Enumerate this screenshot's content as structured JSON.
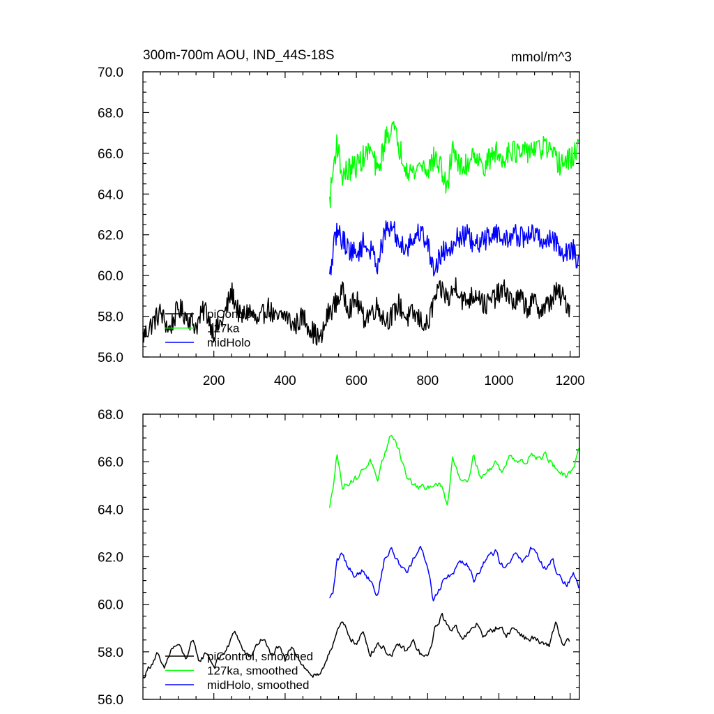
{
  "chart_data": [
    {
      "type": "line",
      "title": "300m-700m AOU, IND_44S-18S",
      "unit_label": "mmol/m^3",
      "xlabel": "",
      "ylabel": "",
      "xlim": [
        1,
        1226
      ],
      "ylim": [
        56.0,
        70.0
      ],
      "x_ticks": [
        200,
        400,
        600,
        800,
        1000,
        1200
      ],
      "x_tick_labels": [
        "200",
        "400",
        "600",
        "800",
        "1000",
        "1200"
      ],
      "y_ticks": [
        56.0,
        58.0,
        60.0,
        62.0,
        64.0,
        66.0,
        68.0,
        70.0
      ],
      "y_tick_labels": [
        "56.0",
        "58.0",
        "60.0",
        "62.0",
        "64.0",
        "66.0",
        "68.0",
        "70.0"
      ],
      "grid": false,
      "legend_position": "lower-left",
      "series": [
        {
          "name": "piControl",
          "color": "#000000",
          "x": [
            1,
            25,
            50,
            75,
            100,
            125,
            150,
            175,
            200,
            225,
            250,
            275,
            300,
            325,
            350,
            375,
            400,
            425,
            450,
            475,
            500,
            520,
            540,
            560,
            580,
            600,
            620,
            640,
            660,
            680,
            700,
            720,
            740,
            760,
            780,
            800,
            820,
            840,
            860,
            880,
            900,
            920,
            940,
            960,
            980,
            1000,
            1020,
            1040,
            1060,
            1080,
            1100,
            1120,
            1140,
            1160,
            1180,
            1200
          ],
          "values": [
            57.0,
            57.6,
            58.2,
            57.3,
            58.4,
            58.0,
            57.5,
            58.4,
            57.2,
            57.8,
            59.2,
            57.9,
            58.3,
            57.6,
            58.5,
            57.8,
            58.1,
            57.5,
            58.0,
            57.3,
            56.8,
            58.1,
            58.6,
            59.2,
            58.4,
            58.8,
            57.9,
            58.2,
            58.5,
            57.8,
            58.0,
            58.6,
            57.9,
            58.1,
            57.8,
            57.5,
            58.9,
            59.3,
            58.8,
            59.6,
            58.7,
            58.9,
            59.2,
            58.5,
            58.8,
            59.1,
            59.3,
            58.6,
            58.9,
            58.4,
            58.7,
            58.3,
            58.6,
            59.2,
            58.9,
            58.4
          ],
          "noise": 0.55
        },
        {
          "name": "127ka",
          "color": "#00ff00",
          "x": [
            525,
            535,
            545,
            560,
            580,
            600,
            620,
            640,
            660,
            680,
            700,
            720,
            740,
            760,
            780,
            800,
            820,
            840,
            855,
            870,
            890,
            910,
            930,
            950,
            970,
            990,
            1010,
            1030,
            1050,
            1070,
            1090,
            1110,
            1130,
            1150,
            1170,
            1190,
            1210,
            1226
          ],
          "values": [
            63.6,
            65.2,
            66.6,
            64.9,
            65.2,
            65.4,
            65.8,
            66.2,
            65.0,
            66.6,
            67.4,
            66.3,
            65.4,
            65.0,
            65.5,
            65.2,
            65.8,
            65.2,
            64.1,
            66.5,
            65.2,
            65.4,
            66.2,
            65.3,
            65.6,
            66.1,
            65.6,
            66.3,
            66.0,
            65.9,
            66.3,
            66.1,
            66.4,
            65.8,
            65.5,
            65.6,
            65.8,
            66.8
          ],
          "noise": 0.6
        },
        {
          "name": "midHolo",
          "color": "#0000ff",
          "x": [
            525,
            535,
            545,
            560,
            580,
            600,
            620,
            640,
            660,
            680,
            700,
            720,
            740,
            760,
            780,
            800,
            815,
            830,
            850,
            870,
            890,
            910,
            930,
            950,
            970,
            990,
            1010,
            1030,
            1050,
            1070,
            1090,
            1110,
            1130,
            1150,
            1170,
            1190,
            1210,
            1226
          ],
          "values": [
            59.8,
            61.2,
            62.2,
            61.8,
            61.3,
            61.0,
            61.6,
            61.2,
            60.6,
            62.1,
            62.4,
            61.6,
            61.4,
            61.8,
            62.2,
            61.6,
            60.3,
            60.8,
            61.3,
            61.6,
            61.9,
            62.0,
            61.4,
            61.6,
            61.9,
            62.2,
            61.7,
            61.9,
            62.0,
            61.8,
            62.1,
            61.9,
            61.6,
            61.9,
            61.3,
            61.1,
            61.3,
            60.4
          ],
          "noise": 0.55
        }
      ]
    },
    {
      "type": "line",
      "title": "",
      "xlabel": "",
      "ylabel": "",
      "xlim": [
        1,
        1226
      ],
      "ylim": [
        56.0,
        68.0
      ],
      "x_ticks": [
        200,
        400,
        600,
        800,
        1000,
        1200
      ],
      "y_ticks": [
        56.0,
        58.0,
        60.0,
        62.0,
        64.0,
        66.0,
        68.0
      ],
      "y_tick_labels": [
        "56.0",
        "58.0",
        "60.0",
        "62.0",
        "64.0",
        "66.0",
        "68.0"
      ],
      "grid": false,
      "legend_position": "lower-left",
      "series": [
        {
          "name": "piControl, smoothed",
          "color": "#000000",
          "x": [
            1,
            20,
            40,
            60,
            80,
            100,
            120,
            140,
            160,
            180,
            200,
            220,
            240,
            260,
            280,
            300,
            320,
            340,
            360,
            380,
            400,
            420,
            440,
            460,
            480,
            500,
            520,
            540,
            560,
            580,
            600,
            620,
            640,
            660,
            680,
            700,
            720,
            740,
            760,
            780,
            800,
            820,
            840,
            860,
            880,
            900,
            920,
            940,
            960,
            980,
            1000,
            1020,
            1040,
            1060,
            1080,
            1100,
            1120,
            1140,
            1160,
            1180,
            1200
          ],
          "values": [
            56.9,
            57.4,
            57.9,
            57.2,
            58.1,
            58.3,
            57.7,
            58.4,
            57.6,
            58.0,
            57.4,
            57.8,
            58.2,
            58.9,
            58.1,
            57.7,
            58.3,
            58.6,
            57.8,
            58.2,
            57.6,
            58.3,
            57.7,
            57.2,
            57.0,
            56.9,
            57.9,
            58.6,
            59.2,
            58.7,
            58.3,
            58.8,
            57.9,
            58.4,
            58.1,
            57.8,
            58.3,
            58.0,
            58.4,
            57.9,
            57.7,
            58.9,
            59.6,
            58.9,
            59.1,
            58.6,
            58.8,
            59.2,
            58.6,
            58.9,
            59.1,
            58.7,
            59.0,
            58.8,
            58.5,
            58.6,
            58.3,
            58.2,
            59.3,
            58.2,
            58.5
          ],
          "noise": 0.28
        },
        {
          "name": "127ka, smoothed",
          "color": "#00ff00",
          "x": [
            525,
            535,
            545,
            560,
            580,
            600,
            620,
            640,
            660,
            680,
            700,
            720,
            740,
            760,
            780,
            800,
            820,
            840,
            855,
            870,
            890,
            910,
            930,
            950,
            970,
            990,
            1010,
            1030,
            1050,
            1070,
            1090,
            1110,
            1130,
            1150,
            1170,
            1190,
            1210,
            1226
          ],
          "values": [
            64.0,
            65.0,
            66.5,
            64.9,
            65.2,
            65.3,
            65.7,
            66.1,
            65.0,
            66.4,
            67.2,
            66.5,
            65.4,
            65.0,
            64.9,
            64.8,
            65.2,
            64.9,
            64.1,
            66.2,
            65.4,
            65.2,
            66.3,
            65.3,
            65.6,
            66.0,
            65.5,
            66.4,
            66.1,
            65.9,
            66.4,
            66.1,
            66.3,
            65.9,
            65.6,
            65.3,
            65.6,
            66.9
          ],
          "noise": 0.3
        },
        {
          "name": "midHolo, smoothed",
          "color": "#0000ff",
          "x": [
            525,
            535,
            545,
            560,
            580,
            600,
            620,
            640,
            660,
            680,
            700,
            720,
            740,
            760,
            780,
            800,
            815,
            830,
            850,
            870,
            890,
            910,
            930,
            950,
            970,
            990,
            1010,
            1030,
            1050,
            1070,
            1090,
            1110,
            1130,
            1150,
            1170,
            1190,
            1210,
            1226
          ],
          "values": [
            60.2,
            60.5,
            61.8,
            62.1,
            61.5,
            61.2,
            61.5,
            61.0,
            60.4,
            62.0,
            62.3,
            61.7,
            61.4,
            61.9,
            62.3,
            61.7,
            60.2,
            60.6,
            61.2,
            61.3,
            61.9,
            61.8,
            61.1,
            61.6,
            62.0,
            62.2,
            61.6,
            61.9,
            62.1,
            61.8,
            62.3,
            61.9,
            61.5,
            61.8,
            61.2,
            60.8,
            61.4,
            60.5
          ],
          "noise": 0.3
        }
      ]
    }
  ]
}
